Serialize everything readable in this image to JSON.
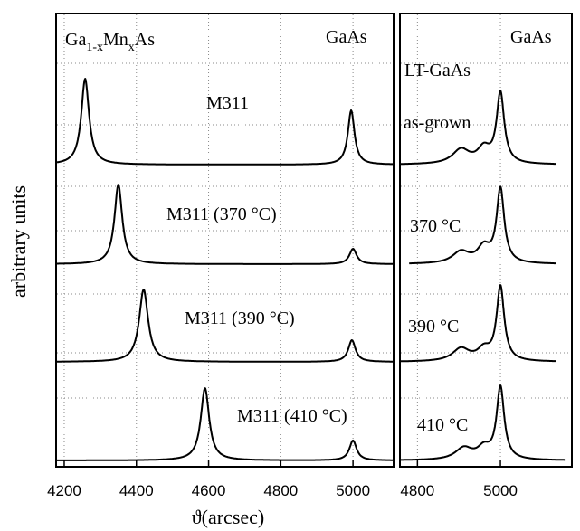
{
  "chart_data": [
    {
      "type": "line",
      "panel": "left",
      "xlabel": "ϑ(arcsec)",
      "ylabel": "arbitrary units",
      "xlim": [
        4180,
        5110
      ],
      "xticks": [
        4200,
        4400,
        4600,
        4800,
        5000
      ],
      "grid": "dotted",
      "header_left": {
        "base": "Ga",
        "sub1": "1-x",
        "mid": "Mn",
        "sub2": "x",
        "tail": "As"
      },
      "header_right": "GaAs",
      "series": [
        {
          "name": "M311",
          "baseline": 0.0,
          "peaks": [
            {
              "x": 4258,
              "height": 0.95,
              "width": 13
            },
            {
              "x": 4995,
              "height": 0.6,
              "width": 11
            }
          ]
        },
        {
          "name": "M311 (370 °C)",
          "baseline": 0.0,
          "peaks": [
            {
              "x": 4350,
              "height": 0.88,
              "width": 13
            },
            {
              "x": 5000,
              "height": 0.17,
              "width": 12
            }
          ]
        },
        {
          "name": "M311 (390 °C)",
          "baseline": 0.0,
          "peaks": [
            {
              "x": 4420,
              "height": 0.8,
              "width": 15
            },
            {
              "x": 4997,
              "height": 0.24,
              "width": 12
            }
          ]
        },
        {
          "name": "M311 (410 °C)",
          "baseline": 0.0,
          "peaks": [
            {
              "x": 4590,
              "height": 0.8,
              "width": 14
            },
            {
              "x": 5000,
              "height": 0.22,
              "width": 12
            }
          ]
        }
      ]
    },
    {
      "type": "line",
      "panel": "right",
      "xlim": [
        4760,
        5170
      ],
      "xticks": [
        4800,
        5000
      ],
      "grid": "dotted",
      "header_right": "GaAs",
      "header_sub": "LT-GaAs",
      "series": [
        {
          "name": "as-grown",
          "baseline": 0.0,
          "peaks": [
            {
              "x": 4905,
              "height": 0.16,
              "width": 25
            },
            {
              "x": 4960,
              "height": 0.16,
              "width": 18
            },
            {
              "x": 5000,
              "height": 0.78,
              "width": 11
            }
          ]
        },
        {
          "name": "370 °C",
          "baseline": 0.0,
          "peaks": [
            {
              "x": 4905,
              "height": 0.13,
              "width": 25
            },
            {
              "x": 4960,
              "height": 0.17,
              "width": 18
            },
            {
              "x": 5000,
              "height": 0.82,
              "width": 11
            }
          ]
        },
        {
          "name": "390 °C",
          "baseline": 0.0,
          "peaks": [
            {
              "x": 4905,
              "height": 0.14,
              "width": 25
            },
            {
              "x": 4960,
              "height": 0.12,
              "width": 18
            },
            {
              "x": 5000,
              "height": 0.82,
              "width": 11
            }
          ]
        },
        {
          "name": "410 °C",
          "baseline": 0.0,
          "peaks": [
            {
              "x": 4912,
              "height": 0.13,
              "width": 25
            },
            {
              "x": 4960,
              "height": 0.12,
              "width": 18
            },
            {
              "x": 5000,
              "height": 0.8,
              "width": 11
            }
          ]
        }
      ]
    }
  ]
}
